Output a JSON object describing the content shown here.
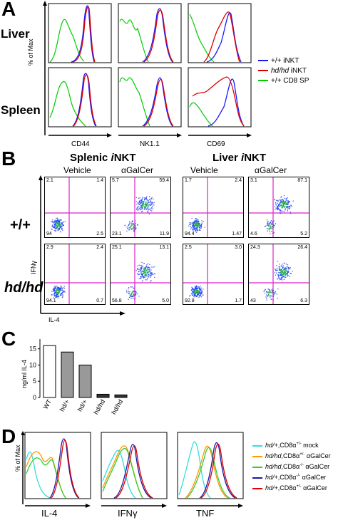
{
  "panelA": {
    "letter": "A",
    "rows": [
      "Liver",
      "Spleen"
    ],
    "markers": [
      "CD44",
      "NK1.1",
      "CD69"
    ],
    "ylabel": "% of Max",
    "legend": [
      {
        "label": "+/+ iNKT",
        "prefix": "+/+",
        "suffix": " iNKT",
        "italic": false,
        "color": "#1a1aff"
      },
      {
        "label": "hd/hd iNKT",
        "prefix": "hd/hd",
        "suffix": " iNKT",
        "italic": true,
        "color": "#e00000"
      },
      {
        "label": "+/+ CD8 SP",
        "prefix": "+/+",
        "suffix": " CD8 SP",
        "italic": false,
        "color": "#00cc00"
      }
    ]
  },
  "panelB": {
    "letter": "B",
    "group_titles": [
      "Splenic iNKT",
      "Liver iNKT"
    ],
    "group_title_parts": [
      {
        "pre": "Splenic ",
        "i": "i",
        "post": "NKT"
      },
      {
        "pre": "Liver ",
        "i": "i",
        "post": "NKT"
      }
    ],
    "conditions": [
      "Vehicle",
      "αGalCer",
      "Vehicle",
      "αGalCer"
    ],
    "genotypes": [
      "+/+",
      "hd/hd"
    ],
    "xlabel": "IL-4",
    "ylabel": "IFNγ",
    "quadrants": [
      [
        [
          "2.1",
          "1.4",
          "94",
          "2.5"
        ],
        [
          "5.7",
          "59.4",
          "23.1",
          "11.9"
        ],
        [
          "1.7",
          "2.4",
          "94.4",
          "1.47"
        ],
        [
          "3.1",
          "87.1",
          "4.6",
          "5.2"
        ]
      ],
      [
        [
          "2.9",
          "2.4",
          "94.1",
          "0.7"
        ],
        [
          "25.1",
          "13.1",
          "56.8",
          "5.0"
        ],
        [
          "2.5",
          "3.0",
          "92.8",
          "1.7"
        ],
        [
          "24.3",
          "26.4",
          "43",
          "6.3"
        ]
      ]
    ]
  },
  "panelC": {
    "letter": "C",
    "ylabel": "ng/ml IL-4",
    "chart_data": {
      "type": "bar",
      "categories": [
        "WT",
        "hd/+",
        "hd/+",
        "hd/hd",
        "hd/hd"
      ],
      "values": [
        16,
        14,
        10,
        1,
        0.8
      ],
      "fills": [
        "#ffffff",
        "#999999",
        "#999999",
        "#333333",
        "#333333"
      ],
      "ylim": [
        0,
        18
      ],
      "yticks": [
        0,
        5,
        10,
        15
      ],
      "ytick_labels": [
        "0",
        "5",
        "10",
        "15"
      ]
    }
  },
  "panelD": {
    "letter": "D",
    "markers": [
      "IL-4",
      "IFNγ",
      "TNF"
    ],
    "ylabel": "% of Max",
    "legend": [
      {
        "g1": "hd/+",
        "rest": ",CD8α",
        "sup": "+/-",
        "tail": " mock",
        "color": "#33dddd"
      },
      {
        "g1": "hd/hd",
        "rest": ",CD8α",
        "sup": "+/-",
        "tail": " αGalCer",
        "color": "#ff9900"
      },
      {
        "g1": "hd/hd",
        "rest": ",CD8α",
        "sup": "-/-",
        "tail": " αGalCer",
        "color": "#33cc33"
      },
      {
        "g1": "hd/+",
        "rest": ",CD8α",
        "sup": "-/-",
        "tail": " αGalCer",
        "color": "#1a1aaa"
      },
      {
        "g1": "hd/+",
        "rest": ",CD8α",
        "sup": "+/-",
        "tail": " αGalCer",
        "color": "#e00000"
      }
    ]
  }
}
